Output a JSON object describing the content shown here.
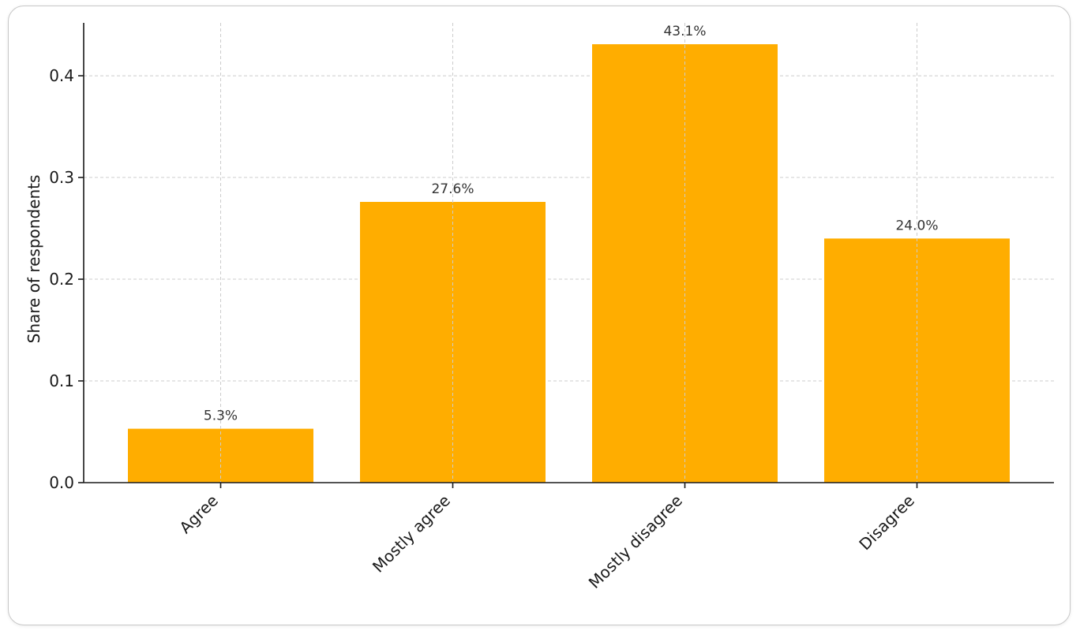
{
  "chart_data": {
    "type": "bar",
    "categories": [
      "Agree",
      "Mostly agree",
      "Mostly disagree",
      "Disagree"
    ],
    "values": [
      0.053,
      0.276,
      0.431,
      0.24
    ],
    "data_labels": [
      "5.3%",
      "27.6%",
      "43.1%",
      "24.0%"
    ],
    "title": "",
    "xlabel": "",
    "ylabel": "Share of respondents",
    "ylim": [
      0,
      0.452
    ],
    "yticks": [
      0.0,
      0.1,
      0.2,
      0.3,
      0.4
    ],
    "ytick_labels": [
      "0.0",
      "0.1",
      "0.2",
      "0.3",
      "0.4"
    ],
    "grid": true,
    "bar_color": "#FFAD00"
  }
}
